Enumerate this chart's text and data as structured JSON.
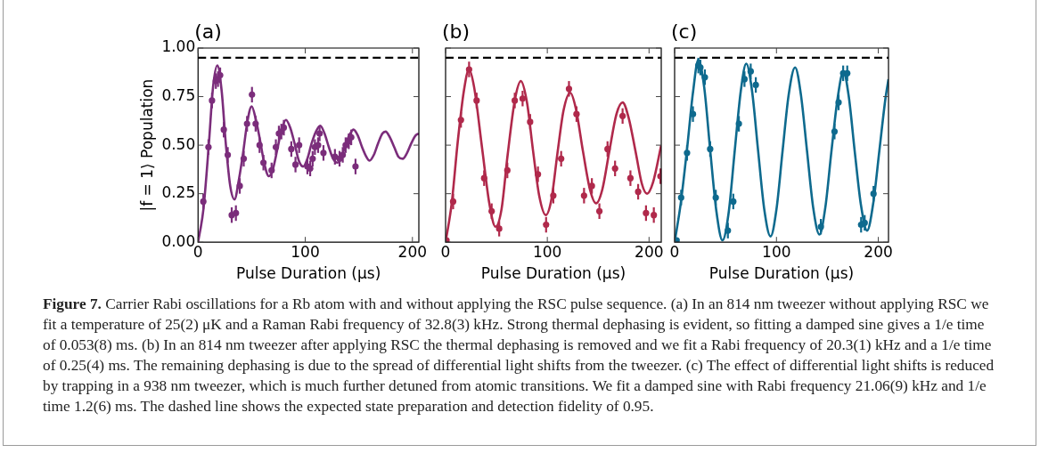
{
  "chart_data": [
    {
      "type": "scatter",
      "title": "(a)",
      "xlabel": "Pulse Duration (μs)",
      "ylabel": "|f = 1⟩ Population",
      "xlim": [
        0,
        206
      ],
      "ylim": [
        0,
        1
      ],
      "xticks": [
        0,
        100,
        200
      ],
      "yticks": [
        {
          "value": 0,
          "label": "0.00"
        },
        {
          "value": 0.25,
          "label": "0.25"
        },
        {
          "value": 0.5,
          "label": "0.50"
        },
        {
          "value": 0.75,
          "label": "0.75"
        },
        {
          "value": 1,
          "label": "1.00"
        }
      ],
      "ref_lines": [
        {
          "axis": "y",
          "value": 0.95,
          "color": "#000000",
          "line_style": "dashed"
        }
      ],
      "annotations": [
        "Figure 7.",
        "Carrier Rabi oscillations for a Rb atom with and without applying the RSC pulse sequence. (a) In an 814 nm tweezer without applying RSC we fit a temperature of 25(2) μK and a Raman Rabi frequency of 32.8(3) kHz. Strong thermal dephasing is evident, so fitting a damped sine gives a 1/e time of 0.053(8) ms. (b) In an 814 nm tweezer after applying RSC the thermal dephasing is removed and we fit a Rabi frequency of 20.3(1) kHz and a 1/e time of 0.25(4) ms. The remaining dephasing is due to the spread of differential light shifts from the tweezer. (c) The effect of differential light shifts is reduced by trapping in a 938 nm tweezer, which is much further detuned from atomic transitions. We fit a damped sine with Rabi frequency 21.06(9) kHz and 1/e time 1.2(6) ms. The dashed line shows the expected state preparation and detection fidelity of 0.95."
      ],
      "series": [
        {
          "type": "line",
          "color": "#7b2d7b",
          "x": [
            0,
            5,
            10,
            14,
            18,
            22,
            26,
            30,
            34,
            38,
            42,
            46,
            50,
            54,
            58,
            62,
            66,
            70,
            74,
            78,
            82,
            86,
            90,
            94,
            98,
            102,
            106,
            110,
            114,
            118,
            122,
            126,
            130,
            134,
            138,
            142,
            145,
            149,
            153,
            157,
            160,
            164,
            168,
            172,
            175,
            179,
            183,
            187,
            191,
            195,
            199,
            203,
            206
          ],
          "values": [
            0,
            0.17,
            0.5,
            0.8,
            0.91,
            0.78,
            0.5,
            0.29,
            0.22,
            0.32,
            0.46,
            0.62,
            0.7,
            0.63,
            0.52,
            0.4,
            0.34,
            0.38,
            0.48,
            0.58,
            0.63,
            0.59,
            0.51,
            0.42,
            0.39,
            0.43,
            0.51,
            0.57,
            0.6,
            0.56,
            0.49,
            0.43,
            0.41,
            0.44,
            0.51,
            0.56,
            0.58,
            0.55,
            0.49,
            0.44,
            0.42,
            0.45,
            0.51,
            0.56,
            0.57,
            0.54,
            0.49,
            0.44,
            0.43,
            0.46,
            0.51,
            0.55,
            0.56
          ]
        },
        {
          "type": "scatter",
          "marker": "circle",
          "color": "#7b2d7b",
          "x": [
            4.9,
            9.7,
            13,
            16.6,
            18.6,
            20.6,
            24,
            27.7,
            31.4,
            35.3,
            38.9,
            42.6,
            45.7,
            50.3,
            53.7,
            57.4,
            61,
            68.6,
            72.6,
            75.4,
            77.7,
            80,
            87,
            90.9,
            94.3,
            102,
            104.6,
            106.9,
            109,
            112,
            113.4,
            117,
            127.7,
            132,
            135,
            137.7,
            140.6,
            142.9,
            146.9
          ],
          "values": [
            0.21,
            0.49,
            0.73,
            0.83,
            0.84,
            0.86,
            0.58,
            0.45,
            0.14,
            0.15,
            0.29,
            0.43,
            0.61,
            0.76,
            0.61,
            0.5,
            0.41,
            0.37,
            0.49,
            0.56,
            0.57,
            0.59,
            0.48,
            0.4,
            0.5,
            0.39,
            0.38,
            0.43,
            0.49,
            0.5,
            0.56,
            0.46,
            0.44,
            0.43,
            0.45,
            0.5,
            0.52,
            0.54,
            0.39
          ],
          "errors": [
            0.04,
            0.04,
            0.04,
            0.04,
            0.04,
            0.04,
            0.04,
            0.04,
            0.04,
            0.04,
            0.04,
            0.04,
            0.04,
            0.04,
            0.04,
            0.04,
            0.04,
            0.04,
            0.04,
            0.04,
            0.04,
            0.04,
            0.04,
            0.04,
            0.04,
            0.04,
            0.04,
            0.04,
            0.04,
            0.04,
            0.04,
            0.04,
            0.04,
            0.04,
            0.04,
            0.04,
            0.04,
            0.04,
            0.04
          ]
        }
      ]
    },
    {
      "type": "scatter",
      "title": "(b)",
      "xlabel": "Pulse Duration (μs)",
      "xlim": [
        0,
        212
      ],
      "ylim": [
        0,
        1
      ],
      "xticks": [
        0,
        100,
        200
      ],
      "yticks": [
        0,
        0.25,
        0.5,
        0.75,
        1
      ],
      "tick_labels": "x",
      "ref_lines": [
        {
          "axis": "y",
          "value": 0.95,
          "color": "#000000",
          "line_style": "dashed"
        }
      ],
      "series": [
        {
          "type": "line",
          "color": "#b0294b",
          "x": [
            0,
            6,
            12,
            18,
            23,
            28,
            36,
            43,
            49,
            55,
            61,
            68,
            74,
            80,
            86,
            92,
            98.5,
            104,
            110,
            116,
            122.5,
            128,
            135,
            142,
            148,
            154,
            161,
            168,
            174,
            180,
            187,
            193,
            198,
            204,
            212
          ],
          "values": [
            0,
            0.2,
            0.52,
            0.78,
            0.89,
            0.8,
            0.48,
            0.2,
            0.08,
            0.17,
            0.45,
            0.73,
            0.83,
            0.72,
            0.47,
            0.24,
            0.14,
            0.22,
            0.46,
            0.68,
            0.77,
            0.69,
            0.47,
            0.27,
            0.2,
            0.27,
            0.47,
            0.66,
            0.72,
            0.64,
            0.46,
            0.3,
            0.25,
            0.31,
            0.5
          ]
        },
        {
          "type": "scatter",
          "marker": "circle",
          "color": "#b0294b",
          "x": [
            0.9,
            7.4,
            15.1,
            23.1,
            30.5,
            37.9,
            45.3,
            52.7,
            60.7,
            68,
            75.7,
            83.1,
            90.8,
            98.8,
            105.9,
            113.6,
            121.3,
            128.7,
            136.1,
            143.8,
            151.2,
            159.2,
            166.6,
            174,
            181.7,
            189.3,
            197,
            204.7,
            211.2
          ],
          "values": [
            0.01,
            0.21,
            0.63,
            0.89,
            0.73,
            0.33,
            0.16,
            0.07,
            0.37,
            0.73,
            0.74,
            0.62,
            0.35,
            0.09,
            0.24,
            0.43,
            0.79,
            0.66,
            0.24,
            0.29,
            0.16,
            0.48,
            0.38,
            0.65,
            0.33,
            0.26,
            0.15,
            0.14,
            0.34
          ],
          "errors": [
            null,
            0.04,
            0.04,
            0.04,
            0.04,
            0.04,
            0.04,
            0.04,
            0.04,
            0.04,
            0.04,
            0.04,
            0.04,
            0.04,
            0.04,
            0.04,
            0.04,
            0.04,
            0.04,
            0.04,
            0.04,
            0.04,
            0.04,
            0.04,
            0.04,
            0.04,
            0.04,
            0.04,
            0.04
          ]
        }
      ]
    },
    {
      "type": "scatter",
      "title": "(c)",
      "xlabel": "Pulse Duration (μs)",
      "xlim": [
        0,
        210
      ],
      "ylim": [
        0,
        1
      ],
      "xticks": [
        0,
        100,
        200
      ],
      "yticks": [
        0,
        0.25,
        0.5,
        0.75,
        1
      ],
      "tick_labels": "x",
      "ref_lines": [
        {
          "axis": "y",
          "value": 0.95,
          "color": "#000000",
          "line_style": "dashed"
        }
      ],
      "series": [
        {
          "type": "line",
          "color": "#0e6a8e",
          "x": [
            0,
            6,
            12,
            18,
            23.3,
            29,
            35,
            41,
            47,
            53,
            59,
            65,
            70.3,
            76,
            82,
            88,
            94.2,
            100,
            106,
            112,
            118.3,
            124,
            130,
            136,
            142.2,
            148,
            154,
            160,
            165.7,
            171,
            177,
            183,
            189,
            195,
            201,
            207,
            210
          ],
          "values": [
            0,
            0.2,
            0.47,
            0.77,
            0.94,
            0.8,
            0.47,
            0.16,
            0.01,
            0.15,
            0.47,
            0.78,
            0.92,
            0.78,
            0.47,
            0.17,
            0.03,
            0.17,
            0.47,
            0.76,
            0.9,
            0.76,
            0.47,
            0.18,
            0.04,
            0.18,
            0.47,
            0.74,
            0.88,
            0.75,
            0.46,
            0.19,
            0.06,
            0.2,
            0.47,
            0.74,
            0.84
          ]
        },
        {
          "type": "scatter",
          "marker": "circle",
          "color": "#0e6a8e",
          "x": [
            2,
            6.4,
            12.2,
            18,
            23.3,
            25.3,
            29.7,
            34.9,
            40.4,
            52.3,
            57.6,
            63.1,
            68.6,
            74.7,
            79.7,
            143.6,
            157,
            161,
            165.5,
            169.5,
            183.1,
            186.6,
            195.3
          ],
          "values": [
            0.01,
            0.23,
            0.46,
            0.66,
            0.91,
            0.9,
            0.85,
            0.48,
            0.23,
            0.06,
            0.21,
            0.61,
            0.84,
            0.88,
            0.81,
            0.08,
            0.57,
            0.72,
            0.87,
            0.87,
            0.09,
            0.1,
            0.25
          ],
          "errors": [
            null,
            0.04,
            0.04,
            0.04,
            0.04,
            0.04,
            0.04,
            0.04,
            0.04,
            0.04,
            0.04,
            0.04,
            0.04,
            0.04,
            0.04,
            0.04,
            0.04,
            0.04,
            0.04,
            0.04,
            0.04,
            0.04,
            0.04
          ]
        }
      ]
    }
  ]
}
